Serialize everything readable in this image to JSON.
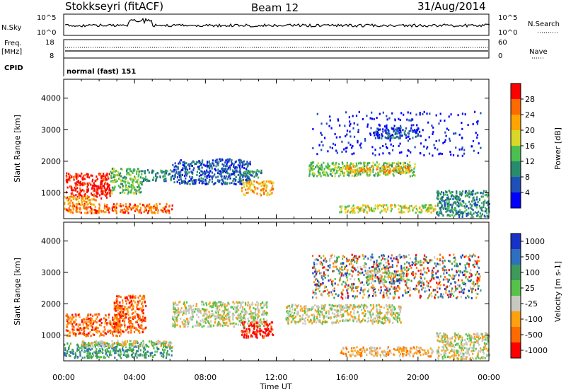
{
  "header": {
    "station": "Stokkseyri (fitACF)",
    "beam": "Beam 12",
    "date": "31/Aug/2014"
  },
  "noise_panel": {
    "left_label": "N.Sky",
    "right_label": "N.Search",
    "left_ticks": [
      "10^5",
      "10^0"
    ],
    "right_ticks": [
      "10^5",
      "10^0"
    ]
  },
  "freq_panel": {
    "left_label": "Freq.",
    "left_unit": "[MHz]",
    "right_label": "Nave",
    "left_ticks": [
      "18",
      "8"
    ],
    "right_ticks": [
      "60",
      "0"
    ]
  },
  "cpid": {
    "label": "CPID",
    "value": "normal (fast) 151"
  },
  "colors": {
    "power": [
      "#0000ff",
      "#1f4fb8",
      "#2a8a6e",
      "#4cbf50",
      "#d8d82a",
      "#ffa500",
      "#ff6a00",
      "#ff0000"
    ],
    "velocity": [
      "#1832c8",
      "#2f6fbf",
      "#3d9a5a",
      "#57c24a",
      "#c8c8c0",
      "#ffa010",
      "#ff6a00",
      "#ff0000"
    ],
    "ground_scatter": "#c0c0b8"
  },
  "chart_data": [
    {
      "type": "heatmap",
      "name": "power",
      "ylabel": "Slant Range [km]",
      "yticks": [
        1000,
        2000,
        3000,
        4000
      ],
      "ylim": [
        180,
        4600
      ],
      "xlim": [
        0,
        24
      ],
      "colorbar_label": "Power [dB]",
      "colorbar_ticks": [
        "4",
        "8",
        "12",
        "16",
        "20",
        "24",
        "28"
      ],
      "regions": [
        {
          "t0": 0.1,
          "t1": 2.6,
          "r0": 850,
          "r1": 1650,
          "level": 7
        },
        {
          "t0": 0.0,
          "t1": 6.1,
          "r0": 380,
          "r1": 680,
          "level": 6
        },
        {
          "t0": 0.0,
          "t1": 1.8,
          "r0": 650,
          "r1": 900,
          "level": 5
        },
        {
          "t0": 2.6,
          "t1": 4.4,
          "r0": 1000,
          "r1": 1800,
          "level": 3
        },
        {
          "t0": 4.4,
          "t1": 6.1,
          "r0": 1400,
          "r1": 1750,
          "level": 2
        },
        {
          "t0": 6.1,
          "t1": 10.5,
          "r0": 1300,
          "r1": 2100,
          "level": 1
        },
        {
          "t0": 9.6,
          "t1": 11.2,
          "r0": 1500,
          "r1": 1750,
          "level": 2
        },
        {
          "t0": 10.0,
          "t1": 11.8,
          "r0": 950,
          "r1": 1400,
          "level": 5
        },
        {
          "t0": 13.8,
          "t1": 19.8,
          "r0": 1550,
          "r1": 2000,
          "level": 3
        },
        {
          "t0": 15.8,
          "t1": 19.5,
          "r0": 1650,
          "r1": 1900,
          "level": 5
        },
        {
          "t0": 17.5,
          "t1": 20.0,
          "r0": 2750,
          "r1": 3100,
          "level": 1
        },
        {
          "t0": 15.5,
          "t1": 21.0,
          "r0": 400,
          "r1": 650,
          "level": 4
        },
        {
          "t0": 21.0,
          "t1": 24.0,
          "r0": 250,
          "r1": 1100,
          "level": 2
        },
        {
          "t0": 14.0,
          "t1": 23.5,
          "r0": 2200,
          "r1": 3600,
          "level": 0
        }
      ]
    },
    {
      "type": "heatmap",
      "name": "velocity",
      "ylabel": "Slant Range [km]",
      "yticks": [
        1000,
        2000,
        3000,
        4000
      ],
      "ylim": [
        180,
        4600
      ],
      "xlim": [
        0,
        24
      ],
      "xticks": [
        "00:00",
        "04:00",
        "08:00",
        "12:00",
        "16:00",
        "20:00",
        "00:00"
      ],
      "xlabel": "Time UT",
      "colorbar_label": "Velocity [m s-1]",
      "colorbar_ticks": [
        "1000",
        "500",
        "100",
        "25",
        "-25",
        "-100",
        "-500",
        "-1000"
      ],
      "regions": [
        {
          "t0": 0.1,
          "t1": 3.2,
          "r0": 1000,
          "r1": 1700,
          "level": 6
        },
        {
          "t0": 2.8,
          "t1": 4.6,
          "r0": 1100,
          "r1": 2300,
          "level": 6
        },
        {
          "t0": 0.0,
          "t1": 6.1,
          "r0": 300,
          "r1": 800,
          "level": 2
        },
        {
          "t0": 1.0,
          "t1": 6.1,
          "r0": 650,
          "r1": 850,
          "level": 4
        },
        {
          "t0": 6.1,
          "t1": 11.5,
          "r0": 1300,
          "r1": 2100,
          "level": 4
        },
        {
          "t0": 10.0,
          "t1": 11.8,
          "r0": 950,
          "r1": 1450,
          "level": 7
        },
        {
          "t0": 12.5,
          "t1": 19.0,
          "r0": 1400,
          "r1": 2000,
          "level": 4
        },
        {
          "t0": 17.0,
          "t1": 19.5,
          "r0": 2700,
          "r1": 3100,
          "level": 4
        },
        {
          "t0": 15.5,
          "t1": 20.8,
          "r0": 350,
          "r1": 650,
          "level": 5
        },
        {
          "t0": 21.0,
          "t1": 24.0,
          "r0": 250,
          "r1": 1100,
          "level": 4
        },
        {
          "t0": 14.0,
          "t1": 23.5,
          "r0": 2200,
          "r1": 3600,
          "level": 0
        }
      ]
    }
  ]
}
